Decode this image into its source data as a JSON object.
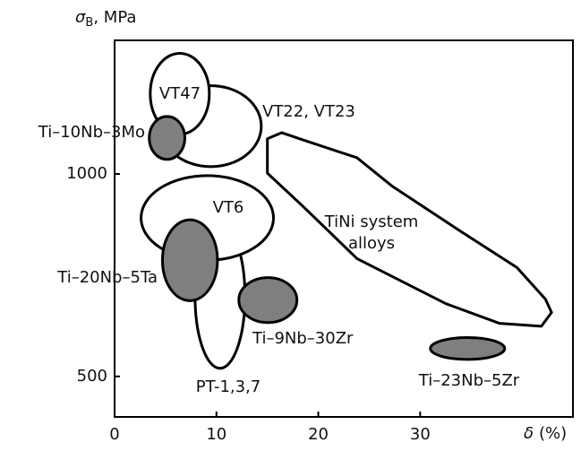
{
  "chart_data": {
    "type": "region",
    "y_label_symbol": "σ",
    "y_label_subscript": "B",
    "y_label_unit": ", MPa",
    "x_label_symbol": "δ",
    "x_label_unit": "(%)",
    "xlim": [
      0,
      45
    ],
    "ylim": [
      400,
      1330
    ],
    "xticks": [
      0,
      10,
      20,
      30
    ],
    "yticks": [
      500,
      1000
    ],
    "regions": [
      {
        "name": "PT-1,3,7",
        "x": [
          7.9,
          12.8
        ],
        "y": [
          520,
          876
        ],
        "color": "#ffffff"
      },
      {
        "name": "VT6",
        "x": [
          2.6,
          15.6
        ],
        "y": [
          787,
          996
        ],
        "color": "#ffffff"
      },
      {
        "name": "VT22, VT23",
        "x": [
          4.5,
          14.4
        ],
        "y": [
          1018,
          1218
        ],
        "color": "#ffffff"
      },
      {
        "name": "VT47",
        "x": [
          3.5,
          9.3
        ],
        "y": [
          1098,
          1298
        ],
        "color": "#ffffff"
      },
      {
        "name": "Ti–10Nb–3Mo",
        "x": [
          3.4,
          6.9
        ],
        "y": [
          1036,
          1142
        ],
        "color": "#7f7f7f"
      },
      {
        "name": "Ti–20Nb–5Ta",
        "x": [
          4.7,
          10.1
        ],
        "y": [
          687,
          887
        ],
        "color": "#7f7f7f"
      },
      {
        "name": "Ti–9Nb–30Zr",
        "x": [
          12.2,
          17.9
        ],
        "y": [
          633,
          744
        ],
        "color": "#7f7f7f"
      },
      {
        "name": "Ti–23Nb–5Zr",
        "x": [
          31.0,
          38.3
        ],
        "y": [
          542,
          596
        ],
        "color": "#7f7f7f"
      }
    ],
    "outline": {
      "name": [
        "TiNi system",
        "alloys"
      ],
      "x": [
        15.0,
        15.0,
        16.4,
        18.5,
        23.8,
        27.3,
        34.3,
        39.5,
        42.3,
        42.9,
        41.9,
        37.8,
        32.5,
        23.8,
        18.5,
        15.0
      ],
      "y": [
        1024,
        1087,
        1102,
        1084,
        1040,
        969,
        853,
        769,
        691,
        658,
        624,
        631,
        680,
        791,
        920,
        1002
      ],
      "color": "#ffffff"
    }
  }
}
